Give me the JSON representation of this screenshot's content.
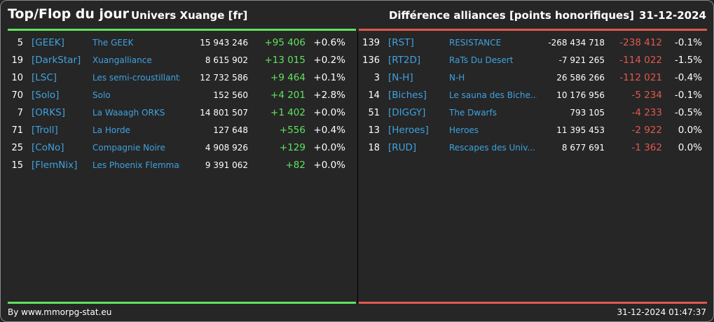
{
  "header": {
    "title": "Top/Flop du jour",
    "universe": "Univers Xuange [fr]",
    "metric": "Différence alliances [points honorifiques]",
    "date": "31-12-2024"
  },
  "colors": {
    "positive": "#5fe35f",
    "negative": "#e0584d",
    "link": "#3fa2e0",
    "background": "#262626"
  },
  "top": [
    {
      "rank": "5",
      "tag": "[GEEK]",
      "name": "The GEEK",
      "points": "15 943 246",
      "diff": "+95 406",
      "pct": "+0.6%"
    },
    {
      "rank": "19",
      "tag": "[DarkStar]",
      "name": "Xuangalliance",
      "points": "8 615 902",
      "diff": "+13 015",
      "pct": "+0.2%"
    },
    {
      "rank": "10",
      "tag": "[LSC]",
      "name": "Les semi-croustillants",
      "points": "12 732 586",
      "diff": "+9 464",
      "pct": "+0.1%"
    },
    {
      "rank": "70",
      "tag": "[Solo]",
      "name": "Solo",
      "points": "152 560",
      "diff": "+4 201",
      "pct": "+2.8%"
    },
    {
      "rank": "7",
      "tag": "[ORKS]",
      "name": "La Waaagh ORKS",
      "points": "14 801 507",
      "diff": "+1 402",
      "pct": "+0.0%"
    },
    {
      "rank": "71",
      "tag": "[Troll]",
      "name": "La Horde",
      "points": "127 648",
      "diff": "+556",
      "pct": "+0.4%"
    },
    {
      "rank": "25",
      "tag": "[CoNo]",
      "name": "Compagnie Noire",
      "points": "4 908 926",
      "diff": "+129",
      "pct": "+0.0%"
    },
    {
      "rank": "15",
      "tag": "[FlemNix]",
      "name": "Les Phoenix Flemmards",
      "points": "9 391 062",
      "diff": "+82",
      "pct": "+0.0%"
    }
  ],
  "flop": [
    {
      "rank": "139",
      "tag": "[RST]",
      "name": "RESISTANCE",
      "points": "-268 434 718",
      "diff": "-238 412",
      "pct": "-0.1%"
    },
    {
      "rank": "136",
      "tag": "[RT2D]",
      "name": "RaTs Du Desert",
      "points": "-7 921 265",
      "diff": "-114 022",
      "pct": "-1.5%"
    },
    {
      "rank": "3",
      "tag": "[N-H]",
      "name": "N-H",
      "points": "26 586 266",
      "diff": "-112 021",
      "pct": "-0.4%"
    },
    {
      "rank": "14",
      "tag": "[Biches]",
      "name": "Le sauna des Biche...",
      "points": "10 176 956",
      "diff": "-5 234",
      "pct": "-0.1%"
    },
    {
      "rank": "51",
      "tag": "[DIGGY]",
      "name": "The Dwarfs",
      "points": "793 105",
      "diff": "-4 233",
      "pct": "-0.5%"
    },
    {
      "rank": "13",
      "tag": "[Heroes]",
      "name": "Heroes",
      "points": "11 395 453",
      "diff": "-2 922",
      "pct": "0.0%"
    },
    {
      "rank": "18",
      "tag": "[RUD]",
      "name": "Rescapes des Univ...",
      "points": "8 677 691",
      "diff": "-1 362",
      "pct": "0.0%"
    }
  ],
  "footer": {
    "credit": "By www.mmorpg-stat.eu",
    "timestamp": "31-12-2024 01:47:37"
  }
}
